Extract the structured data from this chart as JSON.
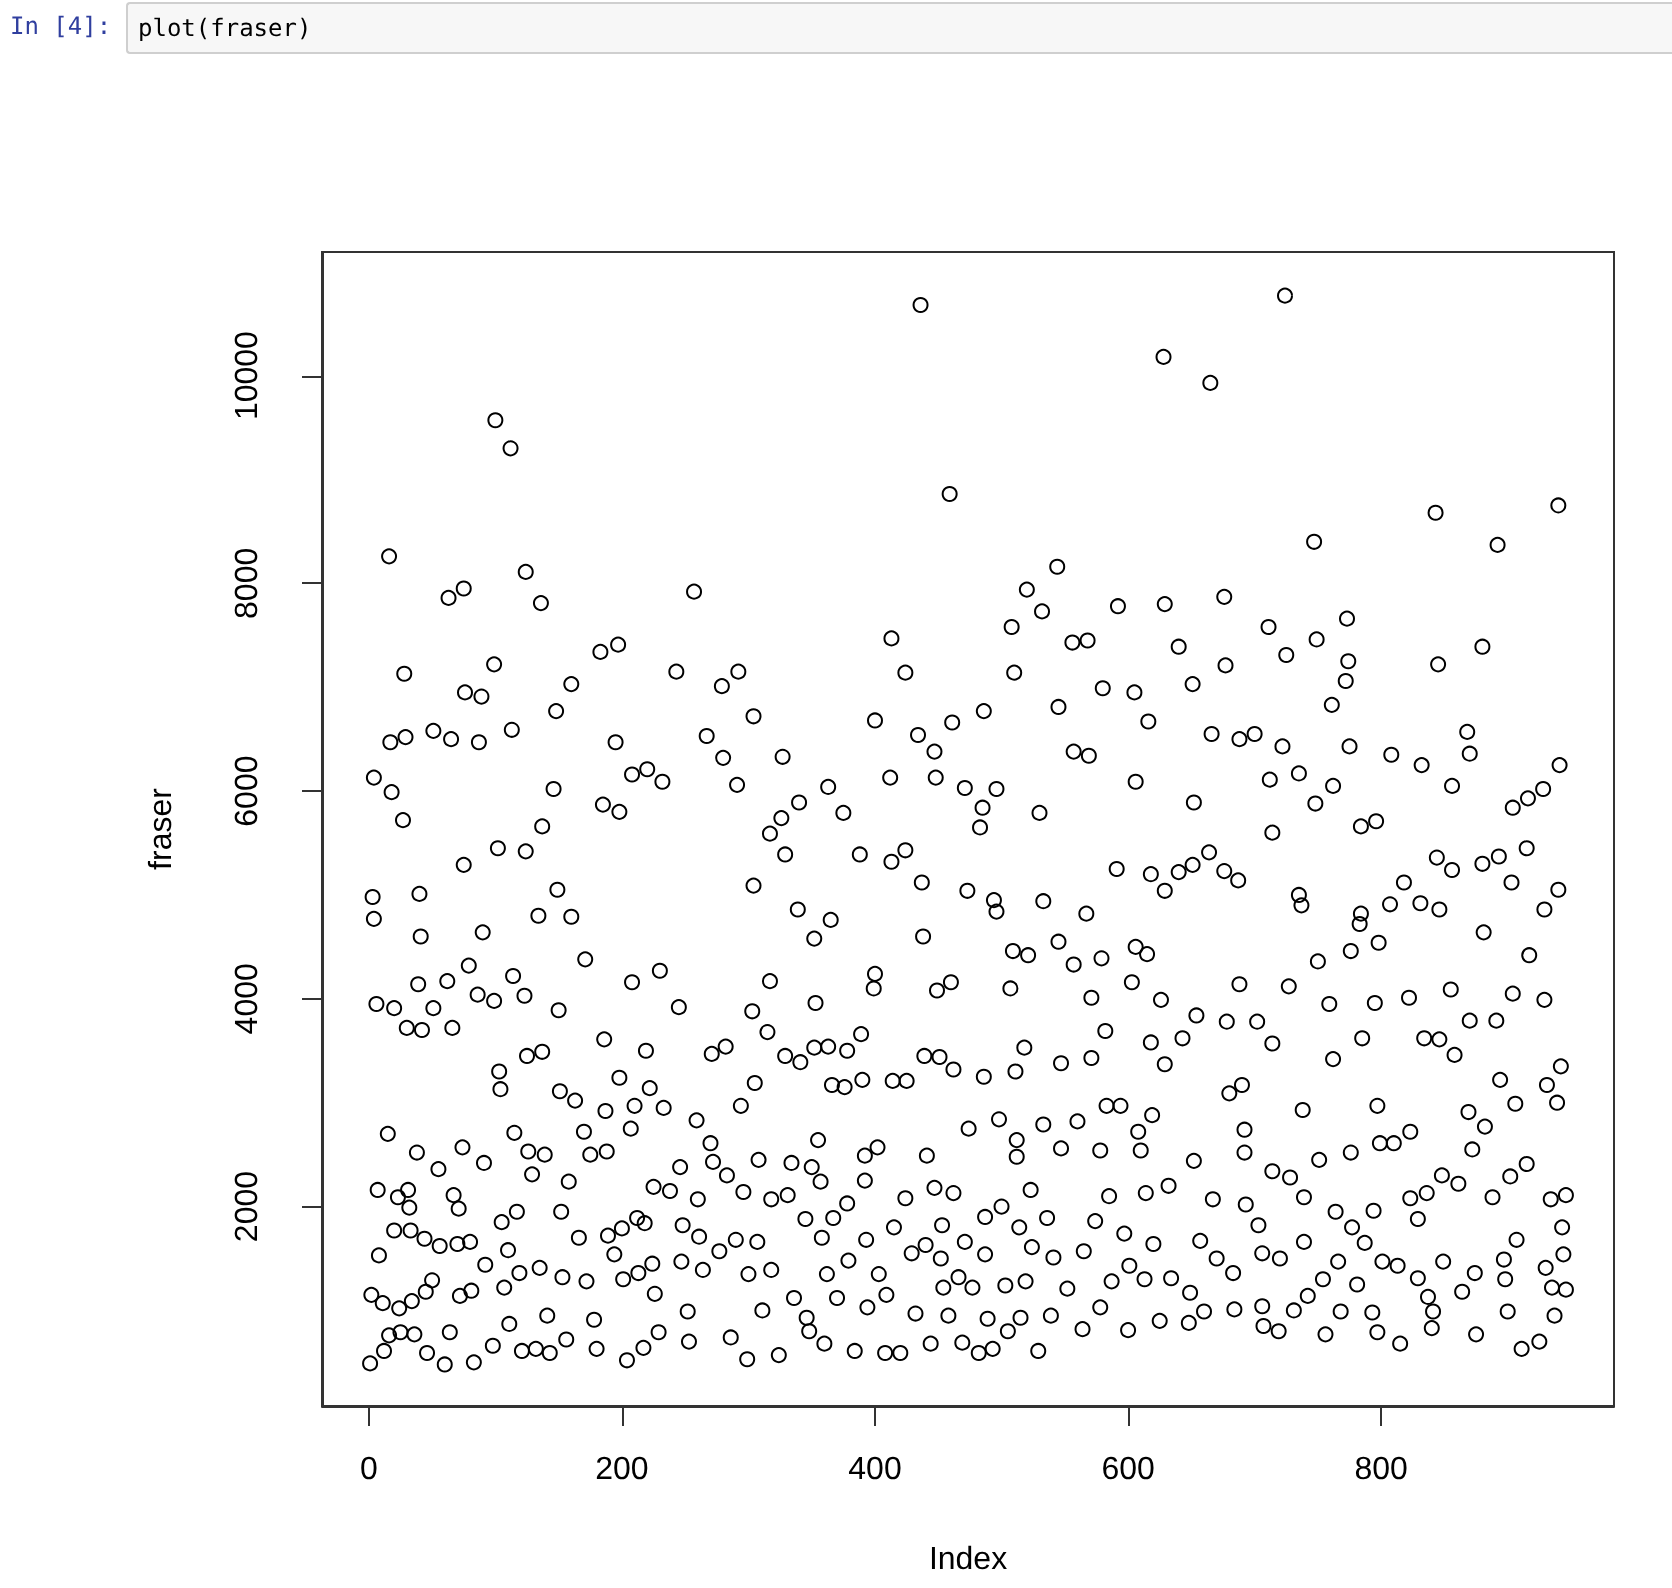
{
  "chart_data": {
    "type": "scatter",
    "xlabel": "Index",
    "ylabel": "fraser",
    "annotations": [
      "In [4]:",
      "plot(fraser)"
    ],
    "xlim": [
      -37,
      984
    ],
    "xticks": [
      0,
      200,
      400,
      600,
      800
    ],
    "ylim": [
      80,
      11190
    ],
    "yticks": [
      2000,
      4000,
      6000,
      8000,
      10000
    ],
    "marker": "circle",
    "series": [
      {
        "color": "#000000",
        "x": [
          100,
          112,
          16,
          124,
          63,
          75,
          136,
          257,
          183,
          197,
          28,
          99,
          243,
          292,
          160,
          76,
          89,
          279,
          148,
          304,
          17,
          29,
          51,
          65,
          87,
          113,
          195,
          267,
          280,
          4,
          18,
          208,
          220,
          232,
          291,
          146,
          185,
          198,
          27,
          137,
          436,
          628,
          459,
          544,
          520,
          532,
          592,
          629,
          508,
          413,
          556,
          568,
          640,
          424,
          510,
          580,
          605,
          651,
          400,
          545,
          486,
          461,
          616,
          434,
          327,
          447,
          557,
          569,
          412,
          448,
          363,
          471,
          496,
          606,
          652,
          340,
          326,
          375,
          485,
          530,
          724,
          665,
          843,
          940,
          747,
          892,
          676,
          711,
          773,
          749,
          725,
          774,
          772,
          677,
          845,
          880,
          761,
          666,
          688,
          700,
          722,
          775,
          808,
          832,
          868,
          870,
          941,
          856,
          712,
          735,
          762,
          748,
          784,
          796,
          904,
          916,
          928,
          714,
          3,
          4,
          40,
          75,
          102,
          124,
          149,
          134,
          160,
          41,
          90,
          6,
          20,
          30,
          42,
          51,
          39,
          62,
          79,
          86,
          99,
          114,
          123,
          66,
          150,
          171,
          208,
          230,
          245,
          186,
          219,
          271,
          282,
          303,
          125,
          137,
          103,
          104,
          151,
          163,
          198,
          222,
          210,
          233,
          187,
          294,
          15,
          115,
          170,
          207,
          259,
          38,
          74,
          126,
          139,
          175,
          188,
          55,
          91,
          129,
          158,
          246,
          270,
          272,
          7,
          31,
          23,
          32,
          67,
          71,
          117,
          152,
          225,
          238,
          260,
          283,
          296,
          8,
          20,
          33,
          44,
          56,
          70,
          80,
          105,
          110,
          166,
          189,
          200,
          212,
          218,
          248,
          261,
          290,
          277,
          194,
          2,
          11,
          24,
          34,
          45,
          50,
          72,
          81,
          92,
          107,
          119,
          135,
          153,
          172,
          201,
          213,
          224,
          247,
          264,
          226,
          252,
          1,
          12,
          16,
          25,
          36,
          46,
          60,
          64,
          83,
          98,
          111,
          121,
          132,
          143,
          156,
          180,
          204,
          217,
          229,
          253,
          286,
          299,
          178,
          141,
          317,
          329,
          388,
          413,
          424,
          483,
          304,
          339,
          365,
          352,
          437,
          473,
          494,
          496,
          533,
          567,
          591,
          618,
          640,
          651,
          629,
          438,
          509,
          521,
          545,
          557,
          579,
          606,
          615,
          603,
          400,
          399,
          449,
          460,
          507,
          317,
          353,
          571,
          626,
          654,
          315,
          389,
          329,
          341,
          352,
          363,
          378,
          366,
          376,
          390,
          414,
          425,
          439,
          451,
          462,
          486,
          511,
          518,
          547,
          571,
          582,
          618,
          643,
          629,
          305,
          355,
          474,
          498,
          512,
          533,
          560,
          583,
          594,
          608,
          619,
          308,
          334,
          350,
          392,
          402,
          441,
          512,
          547,
          578,
          610,
          318,
          331,
          357,
          378,
          392,
          424,
          447,
          462,
          500,
          523,
          536,
          574,
          585,
          614,
          632,
          345,
          367,
          415,
          453,
          487,
          514,
          597,
          307,
          358,
          393,
          440,
          471,
          524,
          620,
          379,
          429,
          452,
          487,
          541,
          565,
          601,
          300,
          318,
          362,
          403,
          454,
          466,
          477,
          503,
          519,
          552,
          587,
          613,
          634,
          336,
          370,
          409,
          311,
          346,
          394,
          432,
          458,
          489,
          515,
          539,
          578,
          600,
          625,
          324,
          348,
          360,
          384,
          408,
          420,
          444,
          469,
          482,
          493,
          505,
          529,
          564,
          648,
          664,
          676,
          687,
          735,
          737,
          784,
          783,
          818,
          807,
          831,
          846,
          844,
          856,
          880,
          893,
          915,
          903,
          940,
          929,
          881,
          917,
          798,
          776,
          750,
          688,
          727,
          759,
          795,
          822,
          855,
          904,
          929,
          678,
          702,
          714,
          762,
          785,
          834,
          846,
          858,
          870,
          891,
          942,
          894,
          906,
          931,
          939,
          680,
          690,
          738,
          797,
          692,
          869,
          882,
          872,
          799,
          810,
          823,
          915,
          902,
          652,
          692,
          714,
          751,
          776,
          848,
          728,
          667,
          693,
          739,
          764,
          794,
          823,
          836,
          861,
          888,
          934,
          946,
          703,
          739,
          777,
          829,
          907,
          943,
          944,
          657,
          670,
          706,
          720,
          766,
          787,
          813,
          849,
          897,
          930,
          683,
          754,
          801,
          829,
          874,
          935,
          946,
          649,
          742,
          781,
          837,
          864,
          898,
          660,
          684,
          706,
          731,
          768,
          793,
          841,
          900,
          937,
          707,
          719,
          756,
          797,
          815,
          840,
          875,
          911,
          925
        ],
        "values": [
          9570,
          9300,
          8260,
          8110,
          7860,
          7950,
          7810,
          7920,
          7340,
          7410,
          7130,
          7220,
          7150,
          7150,
          7030,
          6950,
          6910,
          7010,
          6770,
          6720,
          6470,
          6520,
          6580,
          6500,
          6470,
          6590,
          6470,
          6530,
          6320,
          6130,
          5990,
          6160,
          6210,
          6090,
          6060,
          6020,
          5870,
          5800,
          5720,
          5660,
          10680,
          10180,
          8860,
          8160,
          7940,
          7730,
          7780,
          7800,
          7580,
          7470,
          7430,
          7450,
          7390,
          7140,
          7140,
          6990,
          6950,
          7030,
          6680,
          6810,
          6770,
          6660,
          6670,
          6540,
          6330,
          6380,
          6380,
          6340,
          6130,
          6130,
          6040,
          6030,
          6020,
          6090,
          5890,
          5890,
          5740,
          5790,
          5840,
          5790,
          10770,
          9930,
          8680,
          8750,
          8400,
          8370,
          7870,
          7580,
          7660,
          7460,
          7310,
          7250,
          7060,
          7210,
          7220,
          7390,
          6830,
          6550,
          6500,
          6550,
          6430,
          6430,
          6350,
          6250,
          6570,
          6360,
          6250,
          6050,
          6110,
          6170,
          6050,
          5880,
          5660,
          5710,
          5840,
          5930,
          6020,
          5600,
          4980,
          4770,
          5010,
          5290,
          5450,
          5420,
          5050,
          4800,
          4790,
          4600,
          4640,
          3950,
          3910,
          3720,
          3700,
          3910,
          4140,
          4170,
          4320,
          4040,
          3980,
          4220,
          4030,
          3720,
          3890,
          4380,
          4160,
          4270,
          3920,
          3610,
          3500,
          3470,
          3540,
          3880,
          3450,
          3490,
          3300,
          3130,
          3110,
          3020,
          3240,
          3140,
          2970,
          2950,
          2920,
          2970,
          2700,
          2710,
          2720,
          2750,
          2830,
          2520,
          2570,
          2530,
          2500,
          2500,
          2530,
          2360,
          2420,
          2310,
          2240,
          2380,
          2610,
          2430,
          2160,
          2160,
          2090,
          1990,
          2110,
          1980,
          1950,
          1950,
          2190,
          2150,
          2070,
          2300,
          2140,
          1530,
          1770,
          1770,
          1690,
          1620,
          1640,
          1660,
          1850,
          1580,
          1700,
          1720,
          1790,
          1890,
          1840,
          1820,
          1710,
          1680,
          1570,
          1540,
          1150,
          1070,
          1020,
          1090,
          1180,
          1290,
          1140,
          1190,
          1440,
          1220,
          1360,
          1410,
          1320,
          1280,
          1300,
          1360,
          1450,
          1470,
          1390,
          1160,
          990,
          490,
          610,
          760,
          790,
          770,
          590,
          480,
          790,
          500,
          660,
          870,
          610,
          630,
          590,
          720,
          630,
          520,
          640,
          790,
          700,
          740,
          530,
          910,
          950,
          5590,
          5390,
          5390,
          5320,
          5430,
          5650,
          5090,
          4860,
          4760,
          4580,
          5120,
          5040,
          4950,
          4840,
          4940,
          4820,
          5250,
          5200,
          5220,
          5290,
          5040,
          4600,
          4460,
          4420,
          4550,
          4330,
          4390,
          4500,
          4430,
          4160,
          4240,
          4100,
          4080,
          4160,
          4100,
          4170,
          3960,
          4010,
          3990,
          3840,
          3680,
          3660,
          3450,
          3390,
          3530,
          3540,
          3500,
          3170,
          3150,
          3220,
          3210,
          3210,
          3450,
          3440,
          3320,
          3250,
          3300,
          3530,
          3380,
          3430,
          3690,
          3580,
          3620,
          3370,
          3190,
          2640,
          2750,
          2840,
          2640,
          2790,
          2820,
          2970,
          2970,
          2720,
          2880,
          2450,
          2420,
          2380,
          2490,
          2570,
          2490,
          2480,
          2560,
          2540,
          2540,
          2070,
          2110,
          2240,
          2030,
          2250,
          2080,
          2180,
          2130,
          2000,
          2160,
          1890,
          1860,
          2100,
          2130,
          2200,
          1880,
          1890,
          1800,
          1820,
          1900,
          1800,
          1740,
          1660,
          1700,
          1680,
          1630,
          1660,
          1610,
          1640,
          1480,
          1550,
          1500,
          1540,
          1510,
          1570,
          1430,
          1350,
          1390,
          1350,
          1350,
          1220,
          1320,
          1220,
          1240,
          1280,
          1210,
          1280,
          1300,
          1310,
          1120,
          1120,
          1150,
          1000,
          930,
          1030,
          970,
          950,
          920,
          930,
          950,
          1030,
          810,
          900,
          570,
          800,
          680,
          610,
          590,
          590,
          680,
          690,
          590,
          630,
          800,
          610,
          820,
          880,
          5410,
          5230,
          5140,
          5000,
          4900,
          4820,
          4720,
          5120,
          4910,
          4920,
          4860,
          5360,
          5240,
          5300,
          5370,
          5450,
          5120,
          5050,
          4860,
          4640,
          4420,
          4540,
          4460,
          4360,
          4140,
          4120,
          3950,
          3960,
          4010,
          4090,
          4050,
          3990,
          3780,
          3780,
          3570,
          3420,
          3620,
          3620,
          3610,
          3460,
          3790,
          3790,
          3350,
          3220,
          2990,
          3170,
          3000,
          3090,
          3170,
          2930,
          2970,
          2740,
          2910,
          2770,
          2550,
          2610,
          2610,
          2720,
          2410,
          2290,
          2440,
          2520,
          2340,
          2450,
          2520,
          2300,
          2280,
          2070,
          2020,
          2090,
          1950,
          1960,
          2080,
          2130,
          2220,
          2090,
          2070,
          2110,
          1820,
          1660,
          1800,
          1880,
          1680,
          1800,
          1540,
          1670,
          1500,
          1550,
          1500,
          1470,
          1650,
          1430,
          1470,
          1490,
          1410,
          1360,
          1300,
          1470,
          1310,
          1360,
          1220,
          1200,
          1170,
          1140,
          1250,
          1130,
          1180,
          1300,
          990,
          1010,
          1040,
          1000,
          990,
          980,
          990,
          990,
          950,
          850,
          800,
          770,
          790,
          680,
          830,
          770,
          630,
          700
        ]
      }
    ]
  }
}
